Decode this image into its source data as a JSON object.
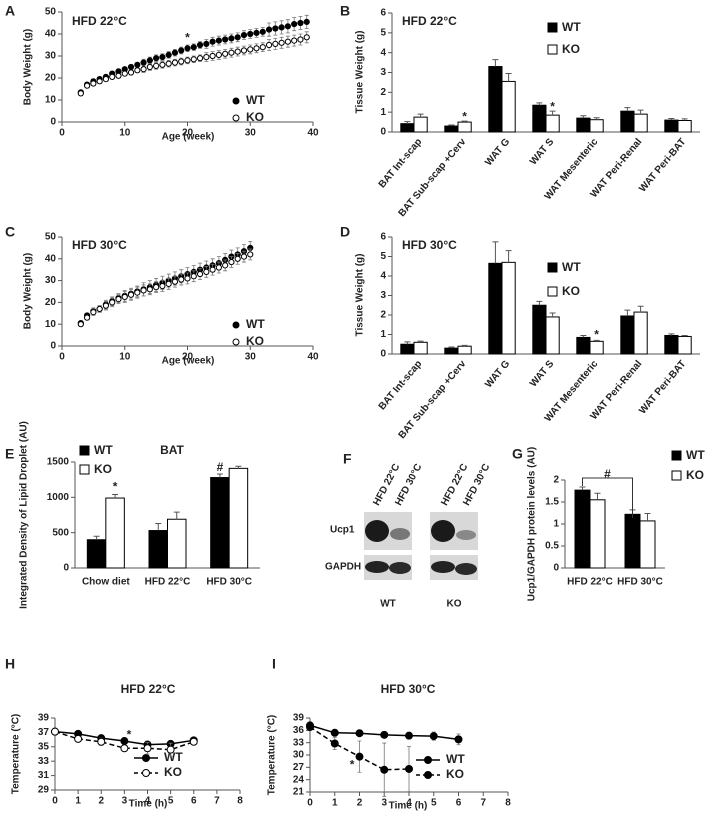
{
  "chart_data": [
    {
      "label": "A",
      "type": "scatter",
      "title": "HFD 22°C",
      "xlabel": "Age (week)",
      "ylabel": "Body Weight (g)",
      "x": [
        3,
        4,
        5,
        6,
        7,
        8,
        9,
        10,
        11,
        12,
        13,
        14,
        15,
        16,
        17,
        18,
        19,
        20,
        21,
        22,
        23,
        24,
        25,
        26,
        27,
        28,
        29,
        30,
        31,
        32,
        33,
        34,
        35,
        36,
        37,
        38,
        39
      ],
      "series": [
        {
          "name": "WT",
          "color": "#000000",
          "fill": "#000000",
          "values": [
            13.5,
            17,
            18.5,
            19.5,
            20.5,
            22,
            23,
            24,
            25,
            26,
            27,
            28,
            29,
            29.5,
            30.5,
            31.5,
            32.5,
            33.5,
            34,
            35,
            35.5,
            36.5,
            37,
            37.5,
            38,
            38.5,
            39.5,
            40,
            40.5,
            41,
            42,
            42.5,
            43,
            43.5,
            44.5,
            45,
            45.5
          ],
          "errors": [
            1,
            1,
            1,
            1,
            1,
            1,
            1,
            1,
            1,
            1,
            1.5,
            1.5,
            1.5,
            1.5,
            1.5,
            1.5,
            1.5,
            1.5,
            1.5,
            1.5,
            2,
            2,
            2,
            2,
            2,
            2,
            2,
            2,
            2,
            2,
            3,
            3,
            3,
            3,
            3,
            3,
            3
          ]
        },
        {
          "name": "KO",
          "color": "#000000",
          "fill": "#ffffff",
          "values": [
            13,
            16.5,
            17.5,
            18.5,
            19.5,
            20.5,
            21,
            22,
            22.5,
            23.5,
            24,
            25,
            25.5,
            26,
            26.5,
            27,
            27.5,
            28,
            28.5,
            29,
            29.5,
            30,
            30.5,
            31,
            31.5,
            32,
            32.5,
            33,
            33.5,
            34,
            35,
            35.5,
            36,
            36.5,
            37,
            37.5,
            38.5
          ],
          "errors": [
            1,
            1,
            1,
            1,
            1,
            1,
            1,
            1,
            1,
            1,
            1.5,
            1.5,
            1.5,
            1.5,
            1.5,
            1.5,
            1.5,
            1.5,
            1.5,
            1.5,
            2,
            2,
            2,
            2,
            2,
            2,
            2,
            2,
            2,
            2,
            2.5,
            2.5,
            2.5,
            2.5,
            2.5,
            2.5,
            2.5
          ]
        }
      ],
      "xlim": [
        0,
        40
      ],
      "xticks": [
        0,
        10,
        20,
        30,
        40
      ],
      "ylim": [
        0,
        50
      ],
      "yticks": [
        0,
        10,
        20,
        30,
        40,
        50
      ],
      "annotations": [
        {
          "text": "*",
          "x": 20,
          "y": 38
        }
      ]
    },
    {
      "label": "B",
      "type": "bar",
      "title": "HFD 22°C",
      "ylabel": "Tissue Weight (g)",
      "categories": [
        "BAT Int-scap",
        "BAT Sub-scap +Cerv",
        "WAT G",
        "WAT S",
        "WAT Mesenteric",
        "WAT Peri-Renal",
        "WAT Peri-BAT"
      ],
      "series": [
        {
          "name": "WT",
          "color": "#000000",
          "fill": "#000000",
          "values": [
            0.42,
            0.3,
            3.3,
            1.35,
            0.7,
            1.05,
            0.6
          ],
          "errors": [
            0.1,
            0.05,
            0.35,
            0.12,
            0.12,
            0.18,
            0.08
          ]
        },
        {
          "name": "KO",
          "color": "#000000",
          "fill": "#ffffff",
          "values": [
            0.75,
            0.5,
            2.55,
            0.85,
            0.62,
            0.9,
            0.58
          ],
          "errors": [
            0.15,
            0.05,
            0.4,
            0.2,
            0.1,
            0.2,
            0.08
          ]
        }
      ],
      "ylim": [
        0,
        6
      ],
      "yticks": [
        0,
        1,
        2,
        3,
        4,
        5,
        6
      ],
      "annotations": [
        {
          "text": "*",
          "x": 1.15,
          "y": 0.75
        },
        {
          "text": "*",
          "x": 3.15,
          "y": 1.25
        }
      ]
    },
    {
      "label": "C",
      "type": "scatter",
      "title": "HFD 30°C",
      "xlabel": "Age (week)",
      "ylabel": "Body Weight (g)",
      "x": [
        3,
        4,
        5,
        6,
        7,
        8,
        9,
        10,
        11,
        12,
        13,
        14,
        15,
        16,
        17,
        18,
        19,
        20,
        21,
        22,
        23,
        24,
        25,
        26,
        27,
        28,
        29,
        30
      ],
      "series": [
        {
          "name": "WT",
          "color": "#000000",
          "fill": "#000000",
          "values": [
            10.5,
            14,
            16,
            17,
            19,
            20.5,
            22,
            23,
            24,
            25,
            26,
            27,
            28,
            29,
            30,
            31,
            32,
            33,
            34,
            35,
            36,
            37,
            38,
            39.5,
            41,
            42,
            43.5,
            45
          ],
          "errors": [
            1,
            1,
            1.5,
            1.5,
            2,
            2,
            2,
            2.5,
            2.5,
            2.5,
            3,
            3,
            3,
            3,
            3,
            3,
            3,
            3,
            3,
            3,
            3,
            3,
            3,
            3,
            3,
            3,
            3,
            3
          ]
        },
        {
          "name": "KO",
          "color": "#000000",
          "fill": "#ffffff",
          "values": [
            10,
            13,
            15.5,
            17,
            18.5,
            20,
            21.5,
            22.5,
            23.5,
            24.5,
            25.5,
            26,
            27,
            27.5,
            28.5,
            29.5,
            30.5,
            31,
            32,
            33,
            34,
            35,
            36,
            37,
            38.5,
            40,
            41,
            42
          ],
          "errors": [
            1,
            1,
            1.5,
            1.5,
            2,
            2,
            2,
            2.5,
            2.5,
            2.5,
            2.5,
            2.5,
            2.5,
            2.5,
            2.5,
            2.5,
            2.5,
            2.5,
            2.5,
            2.5,
            2.5,
            2.5,
            2.5,
            2.5,
            2.5,
            2.5,
            2.5,
            2.5
          ]
        }
      ],
      "xlim": [
        0,
        40
      ],
      "xticks": [
        0,
        10,
        20,
        30,
        40
      ],
      "ylim": [
        0,
        50
      ],
      "yticks": [
        0,
        10,
        20,
        30,
        40,
        50
      ]
    },
    {
      "label": "D",
      "type": "bar",
      "title": "HFD 30°C",
      "ylabel": "Tissue Weight (g)",
      "categories": [
        "BAT Int-scap",
        "BAT Sub-scap +Cerv",
        "WAT G",
        "WAT S",
        "WAT Mesenteric",
        "WAT Peri-Renal",
        "WAT Peri-BAT"
      ],
      "series": [
        {
          "name": "WT",
          "color": "#000000",
          "fill": "#000000",
          "values": [
            0.5,
            0.3,
            4.65,
            2.5,
            0.85,
            1.95,
            0.95
          ],
          "errors": [
            0.12,
            0.06,
            1.1,
            0.2,
            0.1,
            0.3,
            0.08
          ]
        },
        {
          "name": "KO",
          "color": "#000000",
          "fill": "#ffffff",
          "values": [
            0.6,
            0.4,
            4.7,
            1.9,
            0.65,
            2.15,
            0.9
          ],
          "errors": [
            0.06,
            0.04,
            0.6,
            0.2,
            0.05,
            0.3,
            0.05
          ]
        }
      ],
      "ylim": [
        0,
        6
      ],
      "yticks": [
        0,
        1,
        2,
        3,
        4,
        5,
        6
      ],
      "annotations": [
        {
          "text": "*",
          "x": 4.15,
          "y": 0.95
        }
      ]
    },
    {
      "label": "E",
      "type": "bar",
      "title": "BAT",
      "ylabel": "Integrated Density of Lipid Droplet (AU)",
      "categories": [
        "Chow diet",
        "HFD 22°C",
        "HFD 30°C"
      ],
      "series": [
        {
          "name": "WT",
          "color": "#000000",
          "fill": "#000000",
          "values": [
            400,
            530,
            1280
          ],
          "errors": [
            50,
            100,
            50
          ]
        },
        {
          "name": "KO",
          "color": "#000000",
          "fill": "#ffffff",
          "values": [
            990,
            690,
            1410
          ],
          "errors": [
            50,
            100,
            30
          ]
        }
      ],
      "ylim": [
        0,
        1500
      ],
      "yticks": [
        0,
        500,
        1000,
        1500
      ],
      "annotations": [
        {
          "text": "*",
          "x": 0.15,
          "y": 1140
        },
        {
          "text": "#",
          "x": 1.85,
          "y": 1420
        }
      ]
    },
    {
      "label": "G",
      "type": "bar",
      "ylabel": "Ucp1/GAPDH protein levels (AU)",
      "categories": [
        "HFD 22°C",
        "HFD 30°C"
      ],
      "series": [
        {
          "name": "WT",
          "color": "#000000",
          "fill": "#000000",
          "values": [
            1.77,
            1.22
          ],
          "errors": [
            0.07,
            0.1
          ]
        },
        {
          "name": "KO",
          "color": "#000000",
          "fill": "#ffffff",
          "values": [
            1.55,
            1.07
          ],
          "errors": [
            0.15,
            0.17
          ]
        }
      ],
      "ylim": [
        0,
        2
      ],
      "yticks": [
        0,
        0.5,
        1,
        1.5,
        2
      ],
      "annotations": [
        {
          "text": "#",
          "x": 0.35,
          "y": 2.12
        }
      ]
    },
    {
      "label": "H",
      "type": "line",
      "title": "HFD 22°C",
      "xlabel": "Time (h)",
      "ylabel": "Temperature (°C)",
      "series": [
        {
          "name": "WT",
          "color": "#000000",
          "fill": "#000000",
          "dashed": false,
          "x": [
            0,
            1,
            2,
            3,
            4,
            5,
            6
          ],
          "values": [
            37.1,
            36.8,
            36.2,
            35.8,
            35.3,
            35.4,
            35.9
          ],
          "errors": [
            0.3,
            0.3,
            0.4,
            0.3,
            0.5,
            0.4,
            0.3
          ]
        },
        {
          "name": "KO",
          "color": "#000000",
          "fill": "#ffffff",
          "dashed": true,
          "x": [
            0,
            1,
            2,
            3,
            4,
            5,
            6
          ],
          "values": [
            37.1,
            36.1,
            35.7,
            34.8,
            34.8,
            34.6,
            35.7
          ],
          "errors": [
            0.3,
            0.4,
            0.5,
            0.4,
            0.8,
            0.9,
            0.3
          ]
        }
      ],
      "xlim": [
        0,
        8
      ],
      "xticks": [
        0,
        1,
        2,
        3,
        4,
        5,
        6,
        7,
        8
      ],
      "ylim": [
        29,
        39
      ],
      "yticks": [
        29,
        31,
        33,
        35,
        37,
        39
      ],
      "annotations": [
        {
          "text": "*",
          "x": 3.2,
          "y": 36.6
        }
      ]
    },
    {
      "label": "I",
      "type": "line",
      "title": "HFD 30°C",
      "xlabel": "Time (h)",
      "ylabel": "Temperature (°C)",
      "series": [
        {
          "name": "WT",
          "color": "#000000",
          "fill": "#000000",
          "dashed": false,
          "x": [
            0,
            1,
            2,
            3,
            4,
            5,
            6
          ],
          "values": [
            37.2,
            35.4,
            35.3,
            34.9,
            34.7,
            34.6,
            33.8
          ],
          "errors": [
            0.5,
            0.4,
            0.4,
            0.6,
            0.7,
            1.0,
            1.3
          ]
        },
        {
          "name": "KO",
          "color": "#000000",
          "fill": "#000000",
          "dashed": true,
          "x": [
            0,
            1,
            2,
            3,
            4
          ],
          "values": [
            36.8,
            32.8,
            29.6,
            26.4,
            26.6
          ],
          "errors": [
            0.6,
            1.5,
            3.8,
            6.5,
            5.5
          ]
        }
      ],
      "xlim": [
        0,
        8
      ],
      "xticks": [
        0,
        1,
        2,
        3,
        4,
        5,
        6,
        7,
        8
      ],
      "ylim": [
        21,
        39
      ],
      "yticks": [
        21,
        24,
        27,
        30,
        33,
        36,
        39
      ],
      "annotations": [
        {
          "text": "*",
          "x": 1.7,
          "y": 27.5
        }
      ]
    }
  ],
  "blot": {
    "label": "F",
    "lanes": [
      "HFD 22°C",
      "HFD 30°C",
      "HFD 22°C",
      "HFD 30°C"
    ],
    "rows": [
      "Ucp1",
      "GAPDH"
    ],
    "groups": [
      "WT",
      "KO"
    ]
  }
}
